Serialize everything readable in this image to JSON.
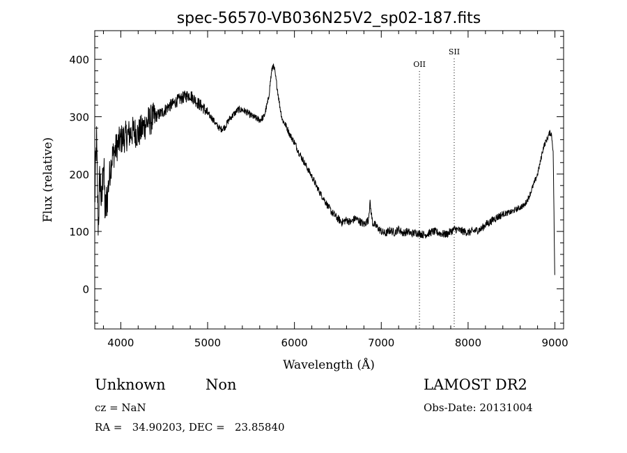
{
  "chart_data": {
    "type": "line",
    "title": "spec-56570-VB036N25V2_sp02-187.fits",
    "xlabel": "Wavelength (Å)",
    "ylabel": "Flux (relative)",
    "xlim": [
      3700,
      9100
    ],
    "ylim": [
      -70,
      450
    ],
    "xticks": [
      4000,
      5000,
      6000,
      7000,
      8000,
      9000
    ],
    "yticks": [
      0,
      100,
      200,
      300,
      400
    ],
    "grid": false,
    "series": [
      {
        "x": [
          3700,
          3720,
          3740,
          3760,
          3780,
          3800,
          3820,
          3850,
          3880,
          3900,
          3930,
          3960,
          4000,
          4050,
          4100,
          4150,
          4200,
          4250,
          4300,
          4350,
          4400,
          4450,
          4500,
          4550,
          4600,
          4650,
          4700,
          4750,
          4800,
          4850,
          4900,
          4950,
          5000,
          5050,
          5100,
          5150,
          5200,
          5250,
          5300,
          5350,
          5400,
          5450,
          5500,
          5550,
          5600,
          5650,
          5700,
          5730,
          5750,
          5770,
          5800,
          5830,
          5860,
          5900,
          5950,
          6000,
          6050,
          6100,
          6150,
          6200,
          6250,
          6300,
          6350,
          6400,
          6450,
          6500,
          6550,
          6600,
          6650,
          6700,
          6750,
          6800,
          6850,
          6870,
          6900,
          6950,
          7000,
          7050,
          7100,
          7150,
          7200,
          7250,
          7300,
          7350,
          7400,
          7450,
          7500,
          7550,
          7600,
          7650,
          7700,
          7750,
          7800,
          7850,
          7900,
          7950,
          8000,
          8050,
          8100,
          8150,
          8200,
          8250,
          8300,
          8350,
          8400,
          8450,
          8500,
          8550,
          8600,
          8650,
          8700,
          8750,
          8800,
          8830,
          8850,
          8870,
          8900,
          8920,
          8940,
          8960,
          8980,
          8990,
          9000
        ],
        "y": [
          150,
          260,
          110,
          200,
          140,
          230,
          130,
          170,
          210,
          230,
          240,
          250,
          260,
          265,
          270,
          275,
          270,
          280,
          290,
          295,
          300,
          305,
          310,
          318,
          322,
          328,
          332,
          336,
          338,
          330,
          322,
          316,
          305,
          298,
          286,
          278,
          282,
          296,
          304,
          312,
          312,
          308,
          302,
          298,
          294,
          300,
          330,
          370,
          390,
          382,
          352,
          320,
          295,
          285,
          268,
          255,
          238,
          224,
          210,
          196,
          180,
          166,
          154,
          140,
          130,
          122,
          116,
          120,
          116,
          123,
          118,
          112,
          120,
          150,
          115,
          108,
          100,
          96,
          102,
          98,
          104,
          97,
          100,
          96,
          98,
          96,
          94,
          97,
          100,
          98,
          96,
          95,
          100,
          104,
          102,
          100,
          98,
          100,
          102,
          104,
          112,
          116,
          122,
          126,
          130,
          132,
          134,
          138,
          142,
          146,
          160,
          180,
          200,
          220,
          235,
          248,
          258,
          265,
          272,
          270,
          240,
          120,
          0
        ]
      }
    ],
    "lines": [
      {
        "label": "OII",
        "x": 7440
      },
      {
        "label": "SII",
        "x": 7840
      }
    ]
  },
  "info": {
    "class": "Unknown",
    "subclass": "Non",
    "cz": "cz = NaN",
    "coords": "RA =   34.90203, DEC =   23.85840",
    "survey": "LAMOST DR2",
    "obsdate": "Obs-Date: 20131004"
  }
}
